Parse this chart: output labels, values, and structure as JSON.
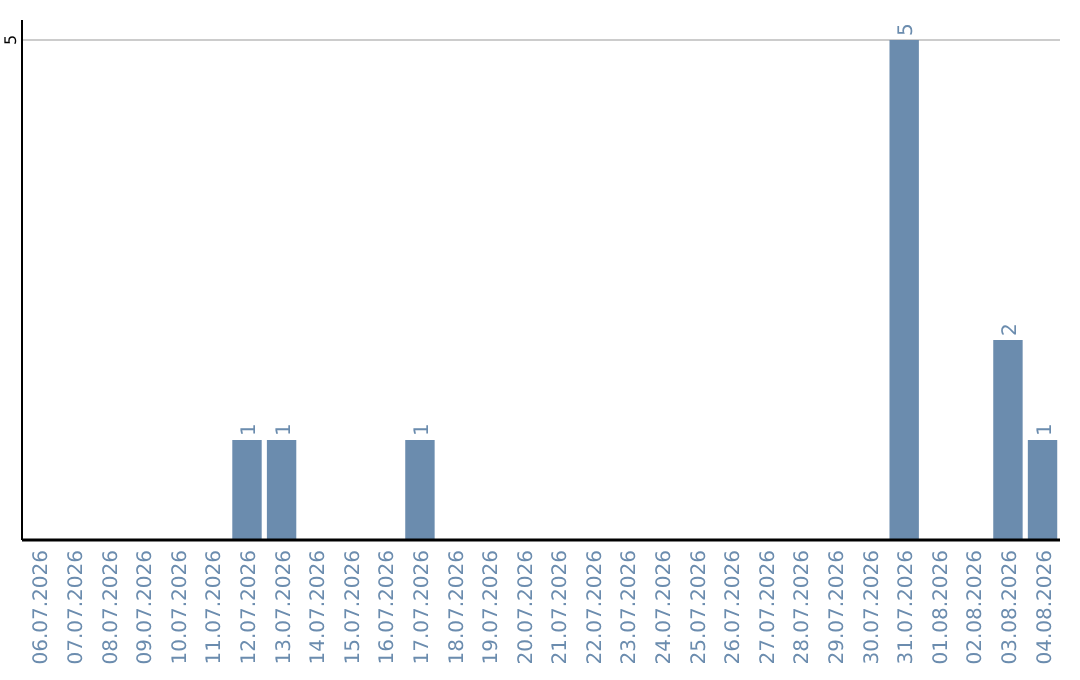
{
  "chart_data": {
    "type": "bar",
    "categories": [
      "06.07.2026",
      "07.07.2026",
      "08.07.2026",
      "09.07.2026",
      "10.07.2026",
      "11.07.2026",
      "12.07.2026",
      "13.07.2026",
      "14.07.2026",
      "15.07.2026",
      "16.07.2026",
      "17.07.2026",
      "18.07.2026",
      "19.07.2026",
      "20.07.2026",
      "21.07.2026",
      "22.07.2026",
      "23.07.2026",
      "24.07.2026",
      "25.07.2026",
      "26.07.2026",
      "27.07.2026",
      "28.07.2026",
      "29.07.2026",
      "30.07.2026",
      "31.07.2026",
      "01.08.2026",
      "02.08.2026",
      "03.08.2026",
      "04.08.2026"
    ],
    "values": [
      0,
      0,
      0,
      0,
      0,
      0,
      1,
      1,
      0,
      0,
      0,
      1,
      0,
      0,
      0,
      0,
      0,
      0,
      0,
      0,
      0,
      0,
      0,
      0,
      0,
      5,
      0,
      0,
      2,
      1
    ],
    "value_labels": [
      null,
      null,
      null,
      null,
      null,
      null,
      "1",
      "1",
      null,
      null,
      null,
      "1",
      null,
      null,
      null,
      null,
      null,
      null,
      null,
      null,
      null,
      null,
      null,
      null,
      null,
      "5",
      null,
      null,
      "2",
      "1"
    ],
    "color": "#6b8cae",
    "ylim": [
      0,
      5
    ],
    "yticks": [
      5
    ],
    "ref_lines": [
      {
        "axis": "y",
        "value": 5,
        "color": "#cccccc"
      }
    ]
  }
}
